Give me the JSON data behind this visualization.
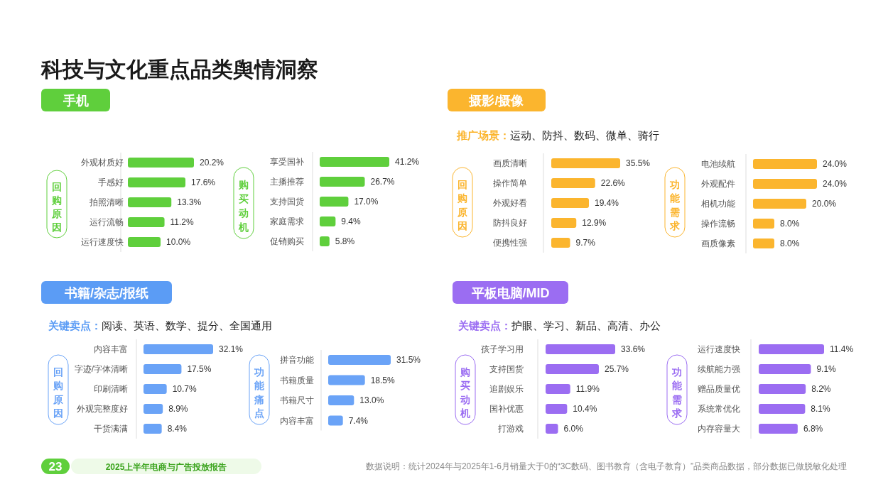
{
  "chart_data": [
    {
      "type": "other",
      "title": "科技与文化重点品类舆情洞察",
      "annotations": [
        "23",
        "2025上半年电商与广告投放报告",
        "数据说明：统计2024年与2025年1-6月销量大于0的“3C数码、图书教育（含电子教育）”品类商品数据，部分数据已做脱敏化处理"
      ]
    },
    {
      "type": "other",
      "title": "手机",
      "color": "#5fcf3c"
    },
    {
      "type": "bar",
      "orientation": "horizontal",
      "title": "回购原因",
      "color": "#5fcf3c",
      "categories": [
        "外观材质好",
        "手感好",
        "拍照清晰",
        "运行流畅",
        "运行速度快"
      ],
      "values": [
        20.2,
        17.6,
        13.3,
        11.2,
        10.0
      ],
      "value_labels": [
        "20.2%",
        "17.6%",
        "13.3%",
        "11.2%",
        "10.0%"
      ]
    },
    {
      "type": "bar",
      "orientation": "horizontal",
      "title": "购买动机",
      "color": "#5fcf3c",
      "categories": [
        "享受国补",
        "主播推荐",
        "支持国货",
        "家庭需求",
        "促销购买"
      ],
      "values": [
        41.2,
        26.7,
        17.0,
        9.4,
        5.8
      ],
      "value_labels": [
        "41.2%",
        "26.7%",
        "17.0%",
        "9.4%",
        "5.8%"
      ]
    },
    {
      "type": "other",
      "title": "摄影/摄像",
      "color": "#fbb52e",
      "annotations": [
        "推广场景：运动、防抖、数码、微单、骑行"
      ]
    },
    {
      "type": "bar",
      "orientation": "horizontal",
      "title": "回购原因",
      "color": "#fbb52e",
      "categories": [
        "画质清晰",
        "操作简单",
        "外观好看",
        "防抖良好",
        "便携性强"
      ],
      "values": [
        35.5,
        22.6,
        19.4,
        12.9,
        9.7
      ],
      "value_labels": [
        "35.5%",
        "22.6%",
        "19.4%",
        "12.9%",
        "9.7%"
      ]
    },
    {
      "type": "bar",
      "orientation": "horizontal",
      "title": "功能需求",
      "color": "#fbb52e",
      "categories": [
        "电池续航",
        "外观配件",
        "相机功能",
        "操作流畅",
        "画质像素"
      ],
      "values": [
        24.0,
        24.0,
        20.0,
        8.0,
        8.0
      ],
      "value_labels": [
        "24.0%",
        "24.0%",
        "20.0%",
        "8.0%",
        "8.0%"
      ]
    },
    {
      "type": "other",
      "title": "书籍/杂志/报纸",
      "color": "#5b9cf5",
      "annotations": [
        "关键卖点：阅读、英语、数学、提分、全国通用"
      ]
    },
    {
      "type": "bar",
      "orientation": "horizontal",
      "title": "回购原因",
      "color": "#6aa3f7",
      "categories": [
        "内容丰富",
        "字迹/字体清晰",
        "印刷清晰",
        "外观完整度好",
        "干货满满"
      ],
      "values": [
        32.1,
        17.5,
        10.7,
        8.9,
        8.4
      ],
      "value_labels": [
        "32.1%",
        "17.5%",
        "10.7%",
        "8.9%",
        "8.4%"
      ]
    },
    {
      "type": "bar",
      "orientation": "horizontal",
      "title": "功能痛点",
      "color": "#6aa3f7",
      "categories": [
        "拼音功能",
        "书籍质量",
        "书籍尺寸",
        "内容丰富"
      ],
      "values": [
        31.5,
        18.5,
        13.0,
        7.4
      ],
      "value_labels": [
        "31.5%",
        "18.5%",
        "13.0%",
        "7.4%"
      ]
    },
    {
      "type": "other",
      "title": "平板电脑/MID",
      "color": "#9b6df2",
      "annotations": [
        "关键卖点：护眼、学习、新品、高清、办公"
      ]
    },
    {
      "type": "bar",
      "orientation": "horizontal",
      "title": "购买动机",
      "color": "#9b6df2",
      "categories": [
        "孩子学习用",
        "支持国货",
        "追剧娱乐",
        "国补优惠",
        "打游戏"
      ],
      "values": [
        33.6,
        25.7,
        11.9,
        10.4,
        6.0
      ],
      "value_labels": [
        "33.6%",
        "25.7%",
        "11.9%",
        "10.4%",
        "6.0%"
      ]
    },
    {
      "type": "bar",
      "orientation": "horizontal",
      "title": "功能需求",
      "color": "#9b6df2",
      "categories": [
        "运行速度快",
        "续航能力强",
        "赠品质量优",
        "系统常优化",
        "内存容量大"
      ],
      "values": [
        11.4,
        9.1,
        8.2,
        8.1,
        6.8
      ],
      "value_labels": [
        "11.4%",
        "9.1%",
        "8.2%",
        "8.1%",
        "6.8%"
      ]
    }
  ]
}
